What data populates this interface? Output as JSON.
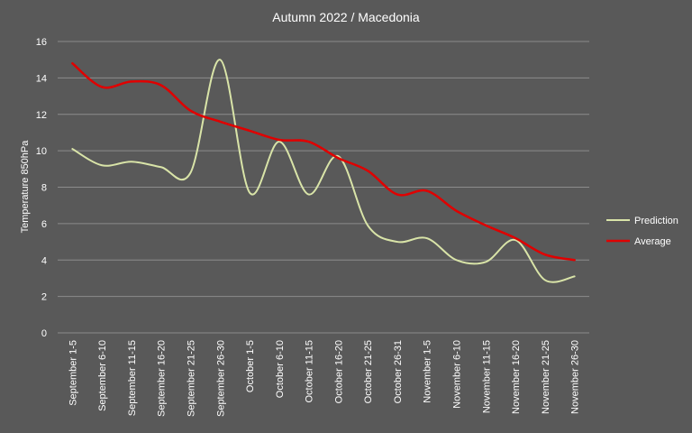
{
  "chart_data": {
    "type": "line",
    "title": "Autumn  2022 / Macedonia",
    "xlabel": "",
    "ylabel": "Temperature  850hPa",
    "ylim": [
      0,
      16
    ],
    "yticks": [
      0,
      2,
      4,
      6,
      8,
      10,
      12,
      14,
      16
    ],
    "grid": true,
    "legend_position": "right",
    "categories": [
      "September 1-5",
      "September 6-10",
      "September 11-15",
      "September 16-20",
      "September 21-25",
      "September 26-30",
      "October 1-5",
      "October 6-10",
      "October 11-15",
      "October 16-20",
      "October 21-25",
      "October 26-31",
      "November 1-5",
      "November 6-10",
      "November 11-15",
      "November 16-20",
      "November 21-25",
      "November 26-30"
    ],
    "series": [
      {
        "name": "Prediction",
        "color": "#d9e4a8",
        "values": [
          10.1,
          9.2,
          9.4,
          9.1,
          8.8,
          15.0,
          7.7,
          10.5,
          7.6,
          9.7,
          5.9,
          5.0,
          5.2,
          4.0,
          3.9,
          5.1,
          2.9,
          3.1
        ]
      },
      {
        "name": "Average",
        "color": "#e00000",
        "values": [
          14.8,
          13.5,
          13.8,
          13.6,
          12.2,
          11.6,
          11.1,
          10.6,
          10.5,
          9.6,
          8.9,
          7.6,
          7.8,
          6.7,
          5.9,
          5.2,
          4.3,
          4.0
        ]
      }
    ]
  }
}
